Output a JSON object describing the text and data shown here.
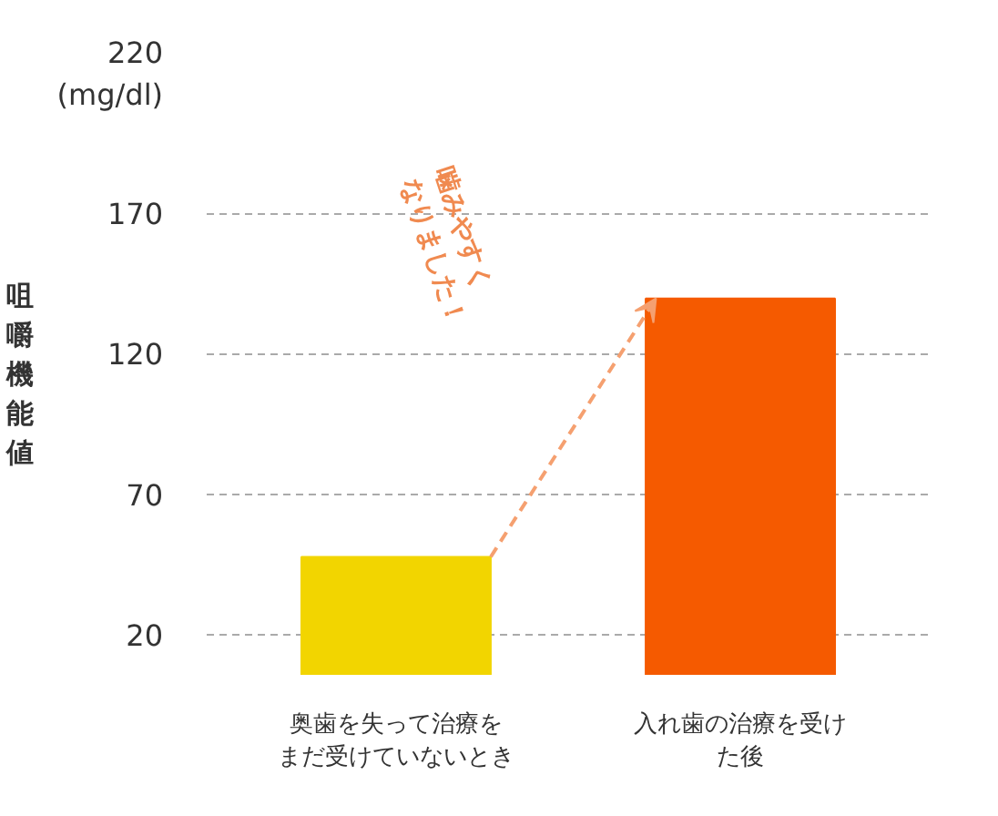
{
  "chart_data": {
    "type": "bar",
    "ylabel": "咀嚼機能値",
    "categories": [
      "奥歯を失って治療をまだ受けていないとき",
      "入れ歯の治療を受けた後"
    ],
    "values": [
      48,
      140
    ],
    "colors": [
      "#f2d500",
      "#f55a00"
    ],
    "ylim": [
      6,
      220
    ],
    "yticks": [
      20,
      70,
      120,
      170,
      220
    ],
    "grid": "y",
    "annotations": [
      "(mg/dl)",
      "噛みやすく\nなりました！"
    ]
  }
}
